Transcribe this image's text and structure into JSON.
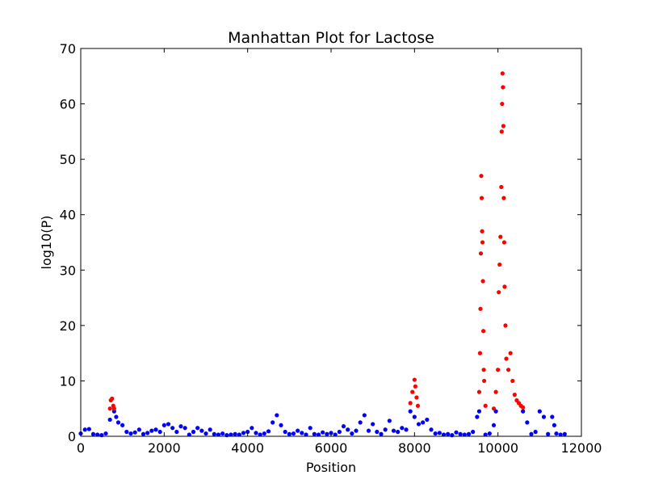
{
  "chart_data": {
    "type": "scatter",
    "title": "Manhattan Plot for Lactose",
    "x_label": "Position",
    "y_label": "log10(P)",
    "xlim": [
      0,
      12000
    ],
    "ylim": [
      0,
      70
    ],
    "xticks": [
      0,
      2000,
      4000,
      6000,
      8000,
      10000,
      12000
    ],
    "yticks": [
      0,
      10,
      20,
      30,
      40,
      50,
      60,
      70
    ],
    "series": [
      {
        "color": "#0000ff",
        "x": [
          0,
          100,
          200,
          300,
          400,
          500,
          600,
          700,
          800,
          850,
          900,
          1000,
          1100,
          1200,
          1300,
          1400,
          1500,
          1600,
          1700,
          1800,
          1900,
          2000,
          2100,
          2200,
          2300,
          2400,
          2500,
          2600,
          2700,
          2800,
          2900,
          3000,
          3100,
          3200,
          3300,
          3400,
          3500,
          3600,
          3700,
          3800,
          3900,
          4000,
          4100,
          4200,
          4300,
          4400,
          4500,
          4600,
          4700,
          4800,
          4900,
          5000,
          5100,
          5200,
          5300,
          5400,
          5500,
          5600,
          5700,
          5800,
          5900,
          6000,
          6100,
          6200,
          6300,
          6400,
          6500,
          6600,
          6700,
          6800,
          6900,
          7000,
          7100,
          7200,
          7300,
          7400,
          7500,
          7600,
          7700,
          7800,
          7900,
          8000,
          8100,
          8200,
          8300,
          8400,
          8500,
          8600,
          8700,
          8800,
          8900,
          9000,
          9100,
          9200,
          9300,
          9400,
          9500,
          9550,
          9700,
          9800,
          9900,
          9950,
          10600,
          10700,
          10800,
          10900,
          11000,
          11100,
          11200,
          11300,
          11350,
          11400,
          11500,
          11600
        ],
        "values": [
          0.5,
          1.2,
          1.3,
          0.4,
          0.3,
          0.2,
          0.5,
          3,
          4.5,
          3.5,
          2.5,
          2,
          0.8,
          0.5,
          0.7,
          1.2,
          0.4,
          0.6,
          1,
          1.2,
          0.8,
          2,
          2.2,
          1.5,
          0.8,
          1.8,
          1.5,
          0.3,
          0.8,
          1.5,
          1,
          0.5,
          1.2,
          0.4,
          0.3,
          0.5,
          0.2,
          0.3,
          0.4,
          0.3,
          0.6,
          0.8,
          1.5,
          0.6,
          0.3,
          0.5,
          0.9,
          2.5,
          3.8,
          2,
          0.8,
          0.4,
          0.5,
          1,
          0.6,
          0.3,
          1.5,
          0.4,
          0.3,
          0.7,
          0.4,
          0.6,
          0.3,
          0.8,
          1.8,
          1.2,
          0.5,
          1,
          2.5,
          3.8,
          1,
          2.2,
          0.8,
          0.4,
          1.2,
          2.8,
          1,
          0.8,
          1.5,
          1.2,
          4.5,
          3.5,
          2.2,
          2.5,
          3,
          1.2,
          0.5,
          0.6,
          0.3,
          0.4,
          0.2,
          0.7,
          0.4,
          0.3,
          0.4,
          0.8,
          3.5,
          4.5,
          0.3,
          0.5,
          2,
          4.5,
          4.5,
          2.5,
          0.4,
          0.8,
          4.5,
          3.5,
          0.4,
          3.5,
          2,
          0.5,
          0.3,
          0.4
        ]
      },
      {
        "color": "#ff0000",
        "x": [
          700,
          720,
          750,
          780,
          800,
          7900,
          7950,
          8000,
          8020,
          8050,
          8080,
          9550,
          9570,
          9580,
          9590,
          9600,
          9610,
          9620,
          9630,
          9640,
          9650,
          9660,
          9670,
          9700,
          9900,
          9950,
          10000,
          10020,
          10040,
          10060,
          10080,
          10090,
          10100,
          10110,
          10120,
          10130,
          10140,
          10150,
          10160,
          10180,
          10200,
          10250,
          10300,
          10350,
          10400,
          10450,
          10500,
          10550,
          10600
        ],
        "values": [
          5,
          6.5,
          6.8,
          5.5,
          5,
          6,
          8,
          10.2,
          9,
          7,
          5.5,
          8,
          15,
          23,
          33,
          47,
          43,
          37,
          35,
          28,
          19,
          12,
          10,
          5.5,
          5,
          8,
          12,
          26,
          31,
          36,
          45,
          55,
          60,
          65.5,
          63,
          56,
          43,
          35,
          27,
          20,
          14,
          12,
          15,
          10,
          7.5,
          6.5,
          6,
          5.5,
          5.2
        ]
      }
    ]
  }
}
